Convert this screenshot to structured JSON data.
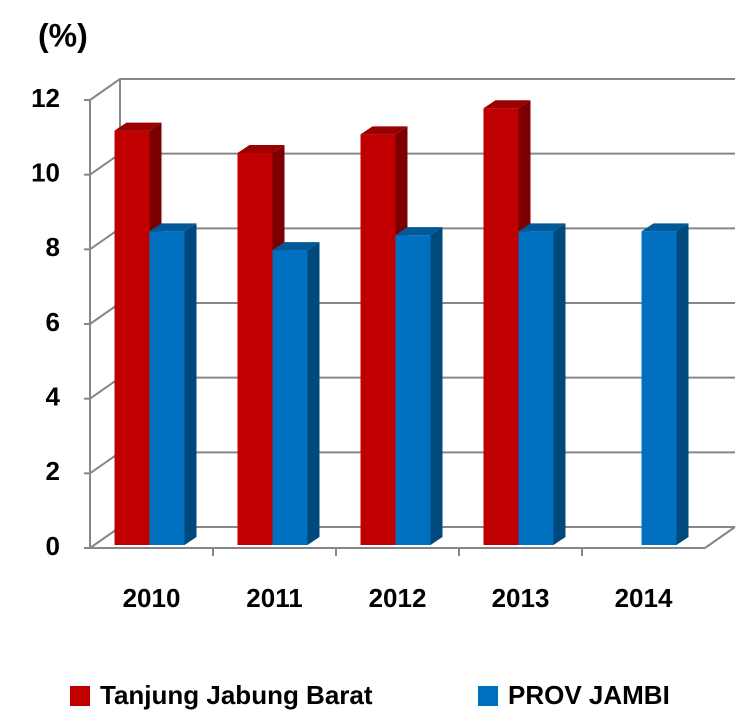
{
  "chart_data": {
    "type": "bar3d",
    "y_label": "(%)",
    "categories": [
      "2010",
      "2011",
      "2012",
      "2013",
      "2014"
    ],
    "series": [
      {
        "name": "Tanjung Jabung Barat",
        "color": "#c00000",
        "values": [
          11.1,
          10.5,
          11.0,
          11.7,
          null
        ]
      },
      {
        "name": "PROV JAMBI",
        "color": "#0070c0",
        "values": [
          8.4,
          7.9,
          8.3,
          8.4,
          8.4
        ]
      }
    ],
    "ylim": [
      0,
      12
    ],
    "yticks": [
      0,
      2,
      4,
      6,
      8,
      10,
      12
    ],
    "grid": true,
    "legend": "bottom"
  }
}
